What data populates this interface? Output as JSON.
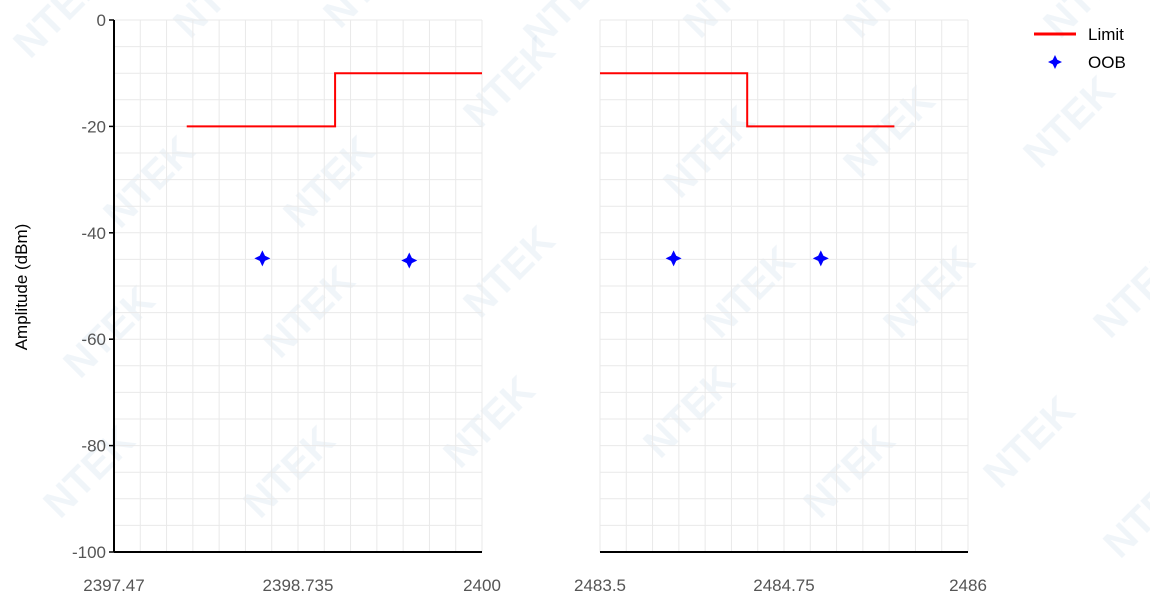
{
  "colors": {
    "limit": "#ff0000",
    "oob": "#0000ff",
    "grid": "#e9e9e9",
    "axis": "#000000",
    "watermark": "#7aa7cf"
  },
  "watermark_text": "NTEK",
  "chart_data": {
    "type": "line",
    "ylabel": "Amplitude (dBm)",
    "ylim": [
      -100,
      0
    ],
    "yticks": [
      0,
      -20,
      -40,
      -60,
      -80,
      -100
    ],
    "grid": true,
    "legend": {
      "position": "top-right",
      "entries": [
        {
          "label": "Limit",
          "kind": "line",
          "color": "#ff0000"
        },
        {
          "label": "OOB",
          "kind": "marker",
          "color": "#0000ff"
        }
      ]
    },
    "panels": [
      {
        "name": "lower-band",
        "xlim": [
          2397.47,
          2400
        ],
        "xticks": [
          2397.47,
          2398.735,
          2400
        ],
        "xtick_labels": [
          "2397.47",
          "2398.735",
          "2400"
        ],
        "show_y_axis": true,
        "series": [
          {
            "name": "Limit",
            "type": "line",
            "color": "#ff0000",
            "x": [
              2397.97,
              2398.99,
              2398.99,
              2400
            ],
            "y": [
              -20,
              -20,
              -10,
              -10
            ]
          },
          {
            "name": "OOB",
            "type": "scatter",
            "color": "#0000ff",
            "x": [
              2398.49,
              2399.5
            ],
            "y": [
              -44.8,
              -45.2
            ]
          }
        ]
      },
      {
        "name": "upper-band",
        "xlim": [
          2483.5,
          2486
        ],
        "xticks": [
          2483.5,
          2484.75,
          2486
        ],
        "xtick_labels": [
          "2483.5",
          "2484.75",
          "2486"
        ],
        "show_y_axis": false,
        "series": [
          {
            "name": "Limit",
            "type": "line",
            "color": "#ff0000",
            "x": [
              2483.5,
              2484.5,
              2484.5,
              2485.5
            ],
            "y": [
              -10,
              -10,
              -20,
              -20
            ]
          },
          {
            "name": "OOB",
            "type": "scatter",
            "color": "#0000ff",
            "x": [
              2484.0,
              2485.0
            ],
            "y": [
              -44.8,
              -44.8
            ]
          }
        ]
      }
    ]
  }
}
